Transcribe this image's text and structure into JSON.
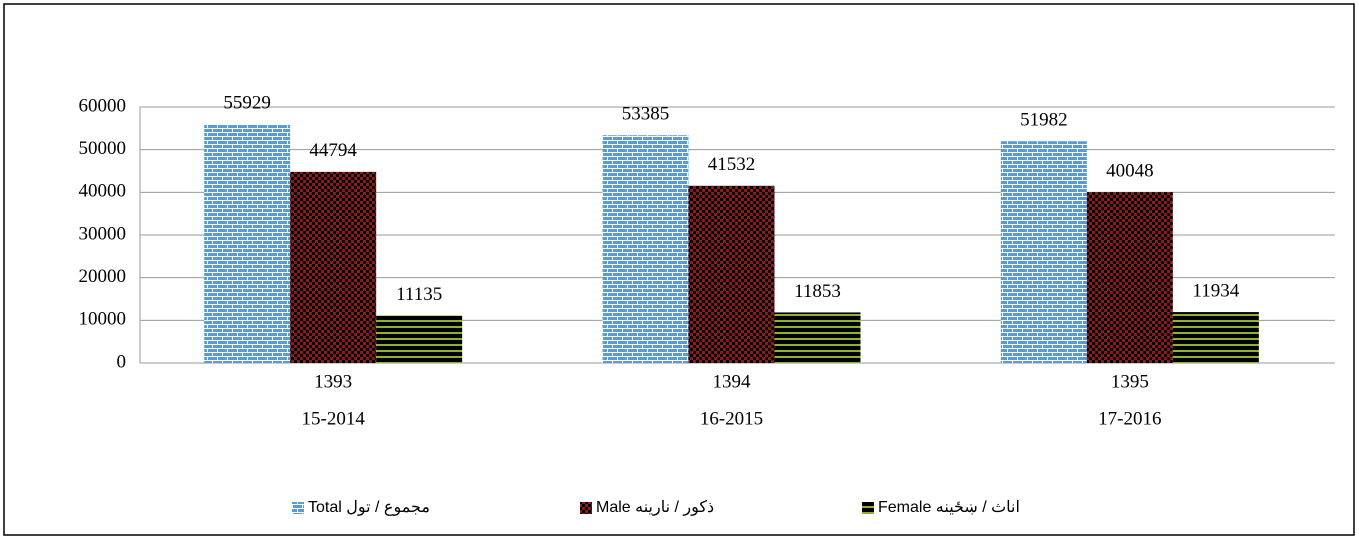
{
  "chart_data": {
    "type": "bar",
    "categories": [
      [
        "1393",
        "15-2014"
      ],
      [
        "1394",
        "16-2015"
      ],
      [
        "1395",
        "17-2016"
      ]
    ],
    "series": [
      {
        "name": "مجموع / تول Total",
        "color": "#5b9bd5",
        "values": [
          55929,
          53385,
          51982
        ]
      },
      {
        "name": "ذکور / نارینه Male",
        "color": "#8b1a1a",
        "values": [
          44794,
          41532,
          40048
        ]
      },
      {
        "name": "اناث / ښځینه Female",
        "color": "#8db32a",
        "values": [
          11135,
          11853,
          11934
        ]
      }
    ],
    "ylim": [
      0,
      60000
    ],
    "yticks": [
      0,
      10000,
      20000,
      30000,
      40000,
      50000,
      60000
    ],
    "grid": true,
    "legend": "bottom"
  }
}
